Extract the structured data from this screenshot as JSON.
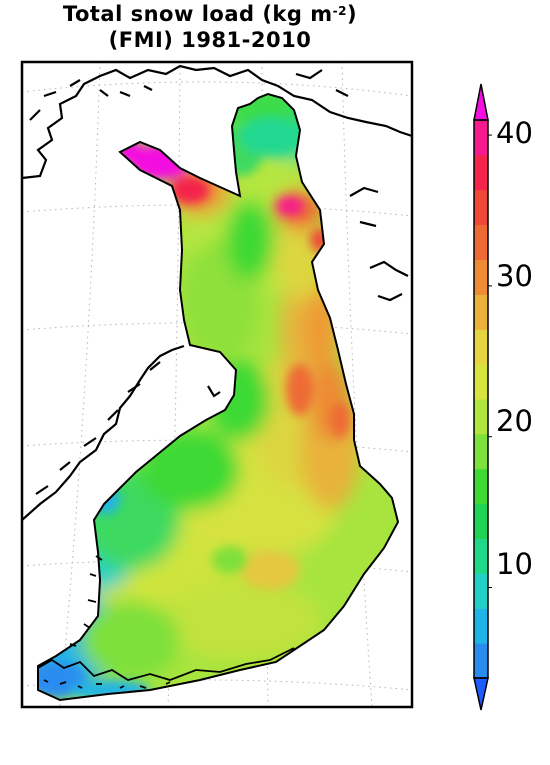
{
  "title": {
    "line1_prefix": "Total snow load (kg m",
    "line1_sup": "-2",
    "line1_suffix": ")",
    "line2": "(FMI) 1981-2010"
  },
  "map": {
    "region": "Finland",
    "variable": "Total snow load",
    "units": "kg m-2",
    "source": "FMI",
    "period": "1981-2010",
    "land_color": "#ffffff",
    "border_color": "#000000",
    "graticule_color": "#bbbbbb"
  },
  "colorbar": {
    "min": 0,
    "max": 42,
    "extend": "both",
    "tick_labels": [
      "10",
      "20",
      "30",
      "40"
    ],
    "colors": [
      "#1f5cff",
      "#2b8cf0",
      "#20b4e6",
      "#22d0c8",
      "#20d88a",
      "#1fd454",
      "#3ed934",
      "#7ee03a",
      "#b0e63e",
      "#d8e43e",
      "#e6d540",
      "#ecb13a",
      "#ed8c34",
      "#ee6a34",
      "#f04838",
      "#f4244c",
      "#f61a8c",
      "#f40ee0"
    ]
  }
}
